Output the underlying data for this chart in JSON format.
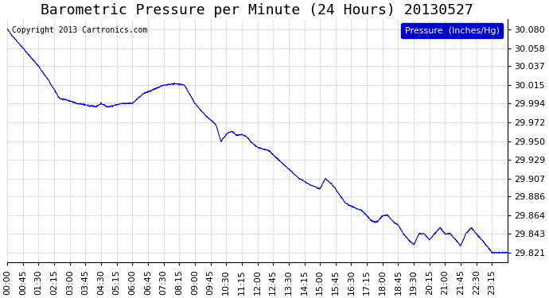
{
  "title": "Barometric Pressure per Minute (24 Hours) 20130527",
  "copyright": "Copyright 2013 Cartronics.com",
  "legend_label": "Pressure  (Inches/Hg)",
  "line_color": "#0000cc",
  "legend_bg": "#0000cc",
  "legend_text_color": "#ffffff",
  "background_color": "#ffffff",
  "grid_color": "#aaaaaa",
  "yticks": [
    29.821,
    29.843,
    29.864,
    29.886,
    29.907,
    29.929,
    29.95,
    29.972,
    29.994,
    30.015,
    30.037,
    30.058,
    30.08
  ],
  "ylim": [
    29.81,
    30.092
  ],
  "xtick_labels": [
    "00:00",
    "00:45",
    "01:30",
    "02:15",
    "03:00",
    "03:45",
    "04:30",
    "05:15",
    "06:00",
    "06:45",
    "07:30",
    "08:15",
    "09:00",
    "09:45",
    "10:30",
    "11:15",
    "12:00",
    "12:45",
    "13:30",
    "14:15",
    "15:00",
    "15:45",
    "16:30",
    "17:15",
    "18:00",
    "18:45",
    "19:30",
    "20:15",
    "21:00",
    "21:45",
    "22:30",
    "23:15"
  ],
  "title_fontsize": 13,
  "tick_fontsize": 8,
  "copyright_fontsize": 7,
  "control_points": [
    [
      0,
      30.08
    ],
    [
      15,
      30.072
    ],
    [
      45,
      30.058
    ],
    [
      90,
      30.037
    ],
    [
      120,
      30.02
    ],
    [
      150,
      30.0
    ],
    [
      180,
      29.997
    ],
    [
      200,
      29.994
    ],
    [
      230,
      29.992
    ],
    [
      255,
      29.99
    ],
    [
      270,
      29.994
    ],
    [
      290,
      29.99
    ],
    [
      310,
      29.992
    ],
    [
      330,
      29.994
    ],
    [
      360,
      29.994
    ],
    [
      390,
      30.005
    ],
    [
      420,
      30.01
    ],
    [
      450,
      30.015
    ],
    [
      480,
      30.017
    ],
    [
      500,
      30.016
    ],
    [
      510,
      30.015
    ],
    [
      540,
      29.994
    ],
    [
      570,
      29.98
    ],
    [
      600,
      29.97
    ],
    [
      615,
      29.95
    ],
    [
      630,
      29.958
    ],
    [
      645,
      29.962
    ],
    [
      660,
      29.957
    ],
    [
      675,
      29.958
    ],
    [
      690,
      29.955
    ],
    [
      700,
      29.95
    ],
    [
      720,
      29.943
    ],
    [
      750,
      29.94
    ],
    [
      780,
      29.929
    ],
    [
      810,
      29.918
    ],
    [
      840,
      29.907
    ],
    [
      870,
      29.9
    ],
    [
      900,
      29.895
    ],
    [
      915,
      29.907
    ],
    [
      930,
      29.902
    ],
    [
      945,
      29.895
    ],
    [
      960,
      29.886
    ],
    [
      975,
      29.878
    ],
    [
      990,
      29.875
    ],
    [
      1000,
      29.873
    ],
    [
      1020,
      29.87
    ],
    [
      1035,
      29.864
    ],
    [
      1050,
      29.857
    ],
    [
      1065,
      29.857
    ],
    [
      1080,
      29.864
    ],
    [
      1095,
      29.864
    ],
    [
      1110,
      29.857
    ],
    [
      1125,
      29.853
    ],
    [
      1140,
      29.843
    ],
    [
      1155,
      29.836
    ],
    [
      1170,
      29.83
    ],
    [
      1185,
      29.843
    ],
    [
      1200,
      29.843
    ],
    [
      1215,
      29.836
    ],
    [
      1230,
      29.843
    ],
    [
      1245,
      29.85
    ],
    [
      1260,
      29.843
    ],
    [
      1275,
      29.843
    ],
    [
      1290,
      29.836
    ],
    [
      1305,
      29.829
    ],
    [
      1320,
      29.843
    ],
    [
      1335,
      29.85
    ],
    [
      1350,
      29.843
    ],
    [
      1365,
      29.836
    ],
    [
      1380,
      29.829
    ],
    [
      1395,
      29.821
    ],
    [
      1410,
      29.821
    ],
    [
      1439,
      29.821
    ]
  ]
}
